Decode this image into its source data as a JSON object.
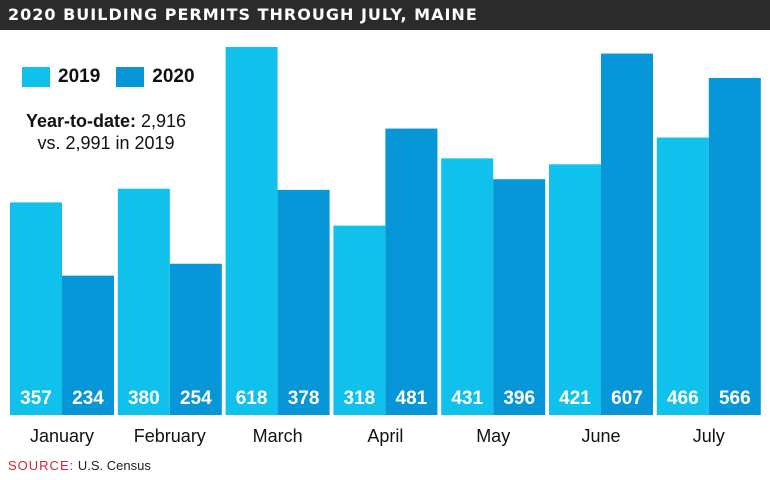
{
  "header": {
    "title": "2020 BUILDING PERMITS THROUGH JULY, MAINE"
  },
  "legend": {
    "label_2019": "2019",
    "label_2020": "2020"
  },
  "summary": {
    "label": "Year-to-date:",
    "value": "2,916",
    "comparison": "vs. 2,991 in 2019"
  },
  "footer": {
    "source_label": "SOURCE:",
    "source_text": "U.S. Census"
  },
  "colors": {
    "c2019": "#0fc1eb",
    "c2020": "#0796d7",
    "title_bg": "#2b2b2b",
    "source": "#d3282f"
  },
  "chart_data": {
    "type": "bar",
    "title": "2020 BUILDING PERMITS THROUGH JULY, MAINE",
    "categories": [
      "January",
      "February",
      "March",
      "April",
      "May",
      "June",
      "July"
    ],
    "series": [
      {
        "name": "2019",
        "values": [
          357,
          380,
          618,
          318,
          431,
          421,
          466
        ]
      },
      {
        "name": "2020",
        "values": [
          234,
          254,
          378,
          481,
          396,
          607,
          566
        ]
      }
    ],
    "ylim": [
      0,
      618
    ],
    "grid": false,
    "legend_position": "top-left",
    "xlabel": "",
    "ylabel": ""
  }
}
